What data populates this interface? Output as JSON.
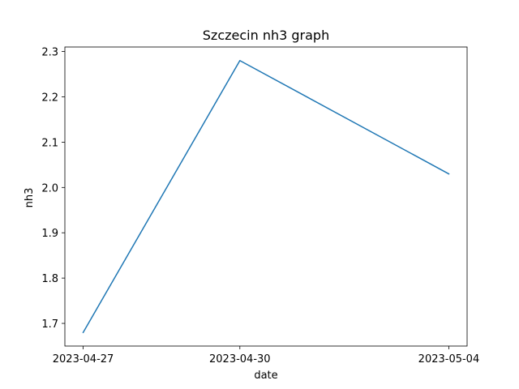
{
  "chart_data": {
    "type": "line",
    "title": "Szczecin nh3 graph",
    "xlabel": "date",
    "ylabel": "nh3",
    "x": [
      "2023-04-27",
      "2023-04-30",
      "2023-05-04"
    ],
    "series": [
      {
        "values": [
          1.68,
          2.28,
          2.03
        ],
        "color": "#1f77b4"
      }
    ],
    "ylim": [
      1.65,
      2.31
    ],
    "yticks": [
      1.7,
      1.8,
      1.9,
      2.0,
      2.1,
      2.2,
      2.3
    ],
    "ytick_labels": [
      "1.7",
      "1.8",
      "1.9",
      "2.0",
      "2.1",
      "2.2",
      "2.3"
    ],
    "grid": false,
    "legend": "none"
  }
}
